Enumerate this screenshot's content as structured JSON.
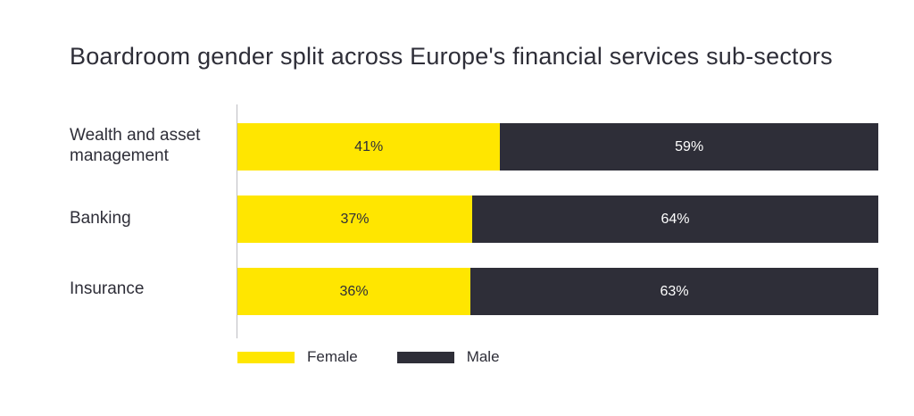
{
  "chart_data": {
    "type": "bar",
    "orientation": "horizontal",
    "stacked": true,
    "title": "Boardroom gender split across Europe's financial services sub-sectors",
    "categories": [
      "Wealth and asset management",
      "Banking",
      "Insurance"
    ],
    "category_lines": [
      [
        "Wealth and asset",
        "management"
      ],
      [
        "Banking"
      ],
      [
        "Insurance"
      ]
    ],
    "series": [
      {
        "name": "Female",
        "values": [
          41,
          37,
          36
        ],
        "labels": [
          "41%",
          "37%",
          "36%"
        ],
        "color": "#ffe600"
      },
      {
        "name": "Male",
        "values": [
          59,
          64,
          63
        ],
        "labels": [
          "59%",
          "64%",
          "63%"
        ],
        "color": "#2e2e38"
      }
    ],
    "legend": "bottom-left",
    "grid": false
  }
}
